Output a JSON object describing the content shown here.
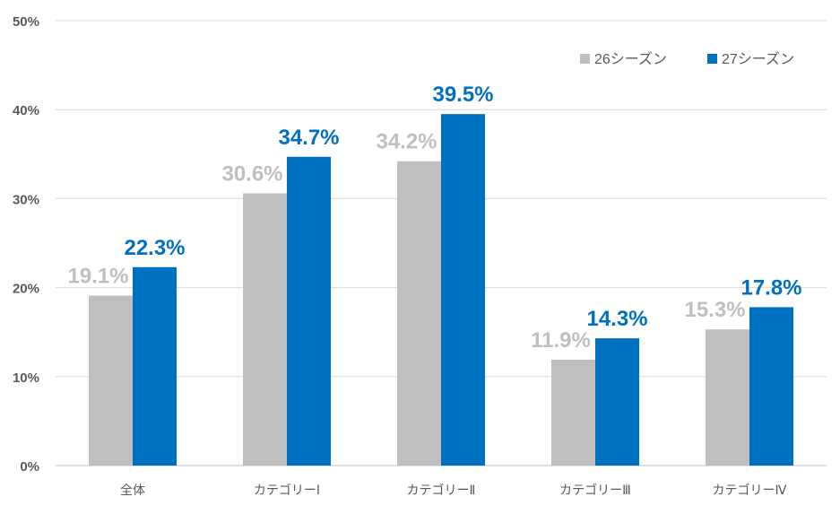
{
  "chart_data": {
    "type": "bar",
    "categories": [
      "全体",
      "カテゴリーⅠ",
      "カテゴリーⅡ",
      "カテゴリーⅢ",
      "カテゴリーⅣ"
    ],
    "series": [
      {
        "name": "26シーズン",
        "values": [
          19.1,
          30.6,
          34.2,
          11.9,
          15.3
        ],
        "labels": [
          "19.1%",
          "30.6%",
          "34.2%",
          "11.9%",
          "15.3%"
        ],
        "color": "#bfbfbf"
      },
      {
        "name": "27シーズン",
        "values": [
          22.3,
          34.7,
          39.5,
          14.3,
          17.8
        ],
        "labels": [
          "22.3%",
          "34.7%",
          "39.5%",
          "14.3%",
          "17.8%"
        ],
        "color": "#0070c0"
      }
    ],
    "ylim": [
      0,
      50
    ],
    "yticks": [
      "0%",
      "10%",
      "20%",
      "30%",
      "40%",
      "50%"
    ],
    "grid": true,
    "legend": "top-right",
    "title": "",
    "xlabel": "",
    "ylabel": ""
  }
}
